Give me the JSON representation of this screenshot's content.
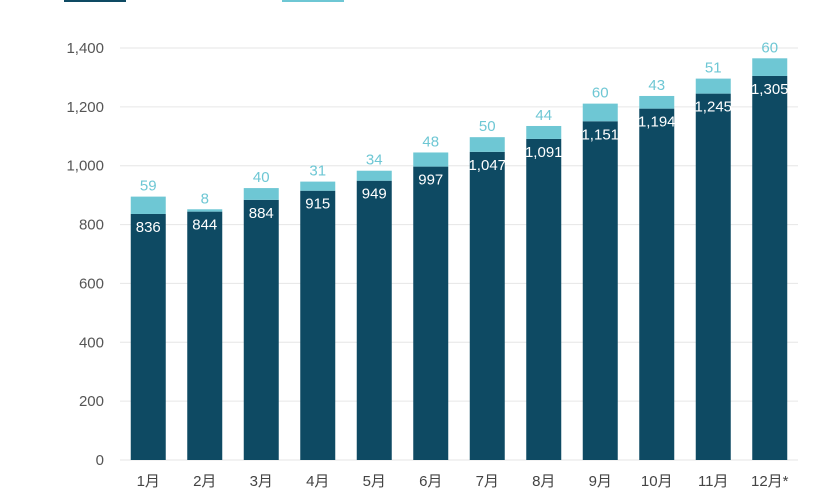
{
  "colors": {
    "dark": "#0e4a63",
    "light": "#6ec7d4",
    "new_label": "#6ec7d4"
  },
  "chart_data": {
    "type": "bar",
    "stacked": true,
    "categories": [
      "1月",
      "2月",
      "3月",
      "4月",
      "5月",
      "6月",
      "7月",
      "8月",
      "9月",
      "10月",
      "11月",
      "12月*"
    ],
    "series": [
      {
        "name": "",
        "color": "#0e4a63",
        "values": [
          836,
          844,
          884,
          915,
          949,
          997,
          1047,
          1091,
          1151,
          1194,
          1245,
          1305
        ]
      },
      {
        "name": "",
        "color": "#6ec7d4",
        "values": [
          59,
          8,
          40,
          31,
          34,
          48,
          50,
          44,
          60,
          43,
          51,
          60
        ]
      }
    ],
    "ylim": [
      0,
      1400
    ],
    "yticks": [
      0,
      200,
      400,
      600,
      800,
      1000,
      1200,
      1400
    ],
    "ytick_labels": [
      "0",
      "200",
      "400",
      "600",
      "800",
      "1,000",
      "1,200",
      "1,400"
    ],
    "grid": true,
    "legend": "top-left",
    "xlabel": "",
    "ylabel": "",
    "title": ""
  }
}
